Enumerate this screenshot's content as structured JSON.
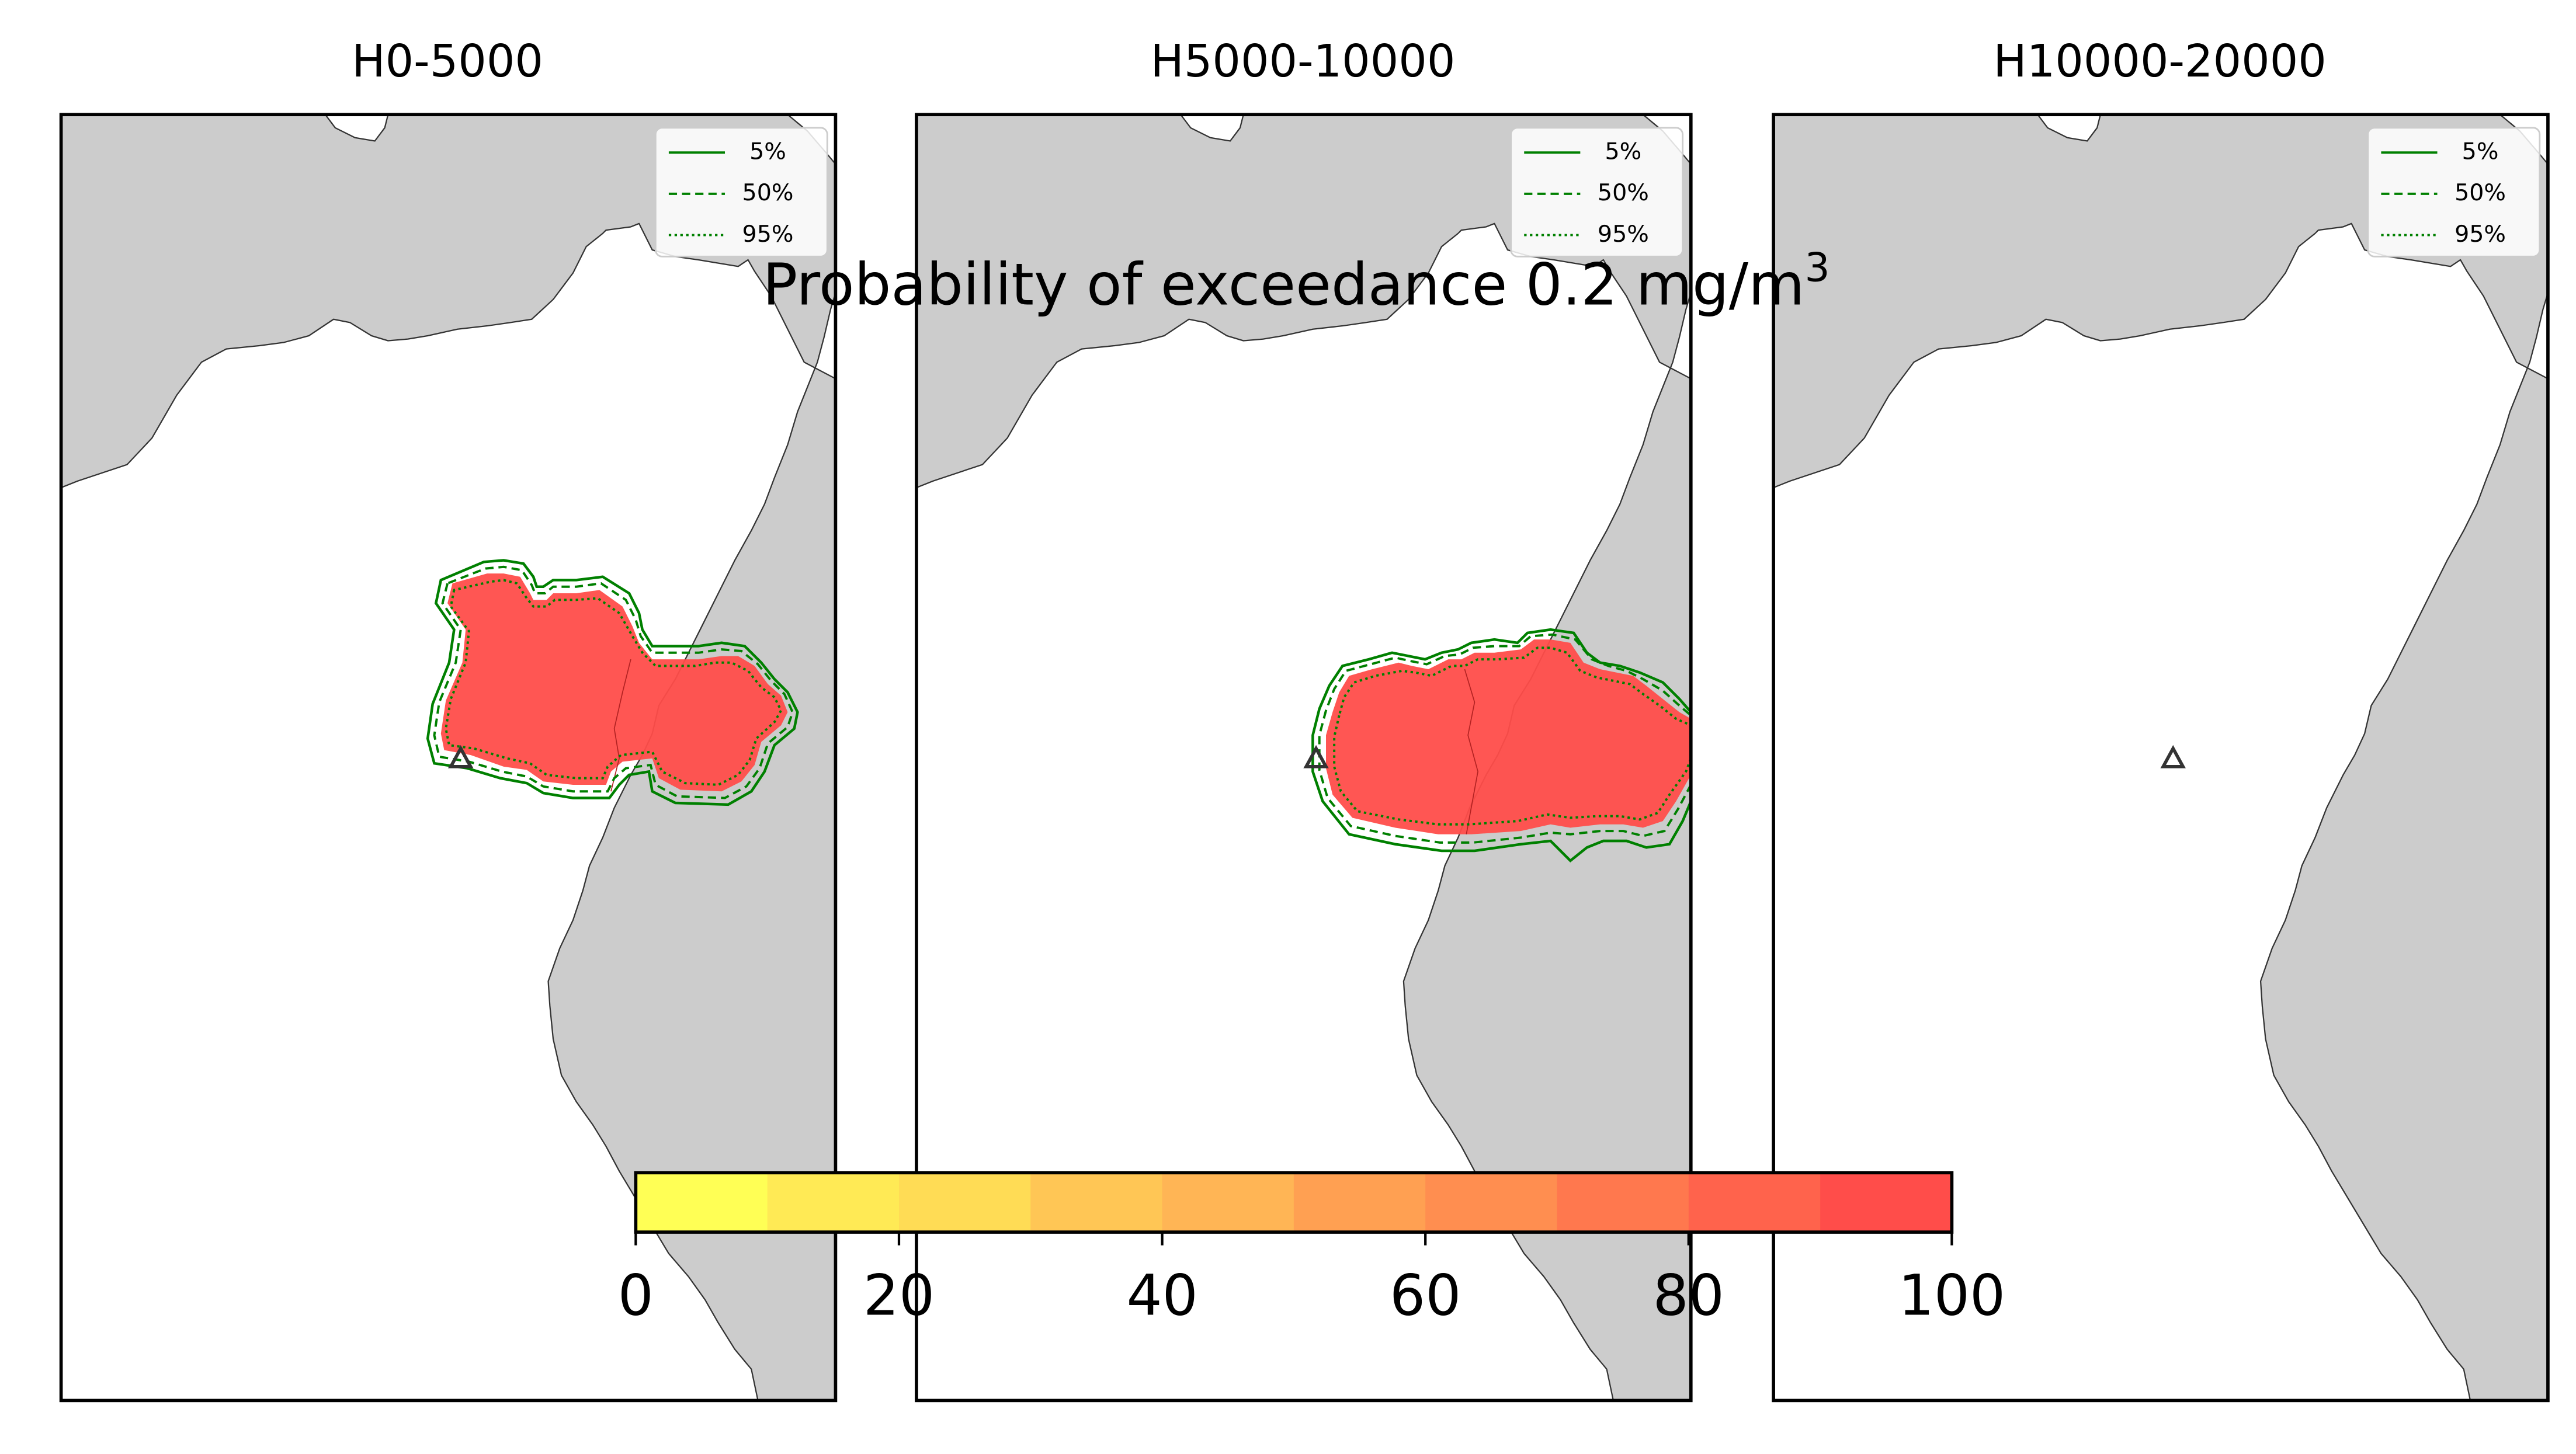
{
  "figure": {
    "title": "Probability of exceedance 0.2 mg/m",
    "title_superscript": "3"
  },
  "colors": {
    "land": "#cccccc",
    "sea": "#ffffff",
    "coastline": "#333333",
    "contour": "#008000",
    "frame": "#000000",
    "vent": "#333333"
  },
  "chart_data": {
    "type": "heatmap",
    "panels": [
      {
        "title": "H0-5000",
        "has_plume": true
      },
      {
        "title": "H5000-10000",
        "has_plume": true
      },
      {
        "title": "H10000-20000",
        "has_plume": false
      }
    ],
    "legend": {
      "placement": "upper right",
      "entries": [
        {
          "label": "5%",
          "style": "solid"
        },
        {
          "label": "50%",
          "style": "dashed"
        },
        {
          "label": "95%",
          "style": "dotted"
        }
      ]
    },
    "colorbar": {
      "range": [
        0,
        100
      ],
      "ticks": [
        0,
        20,
        40,
        60,
        80,
        100
      ],
      "tick_labels": [
        "0",
        "20",
        "40",
        "60",
        "80",
        "100"
      ],
      "bins": [
        {
          "from": 0,
          "to": 10,
          "color": "#ffff55"
        },
        {
          "from": 10,
          "to": 20,
          "color": "#ffea55"
        },
        {
          "from": 20,
          "to": 30,
          "color": "#ffdc55"
        },
        {
          "from": 30,
          "to": 40,
          "color": "#ffc655"
        },
        {
          "from": 40,
          "to": 50,
          "color": "#ffb555"
        },
        {
          "from": 50,
          "to": 60,
          "color": "#ffa052"
        },
        {
          "from": 60,
          "to": 70,
          "color": "#ff8e50"
        },
        {
          "from": 70,
          "to": 80,
          "color": "#ff784e"
        },
        {
          "from": 80,
          "to": 90,
          "color": "#ff634c"
        },
        {
          "from": 90,
          "to": 100,
          "color": "#ff4d4a"
        }
      ]
    },
    "plume_probability_percent": 95
  }
}
